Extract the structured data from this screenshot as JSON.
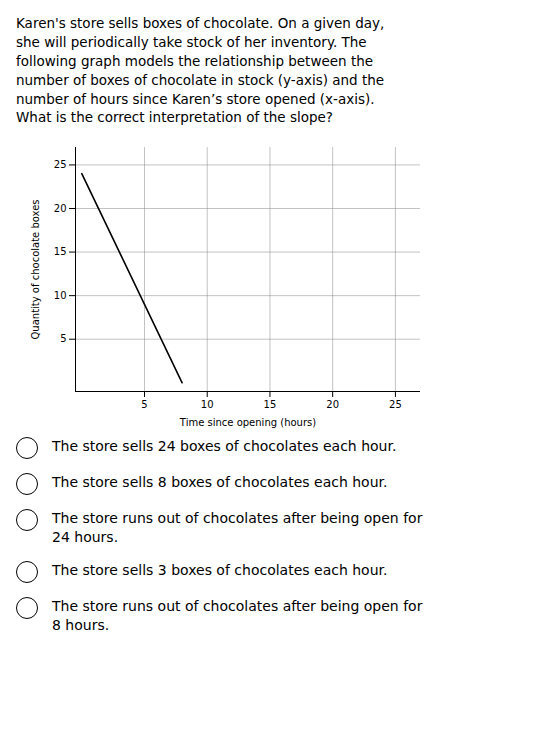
{
  "chart_data": {
    "type": "line",
    "title": "Karen's store sells boxes of chocolate. On a given day,\nshe will periodically take stock of her inventory. The\nfollowing graph models the relationship between the\nnumber of boxes of chocolate in stock (y-axis) and the\nnumber of hours since Karen’s store opened (x-axis).\nWhat is the correct interpretation of the slope?",
    "xlabel": "Time since opening (hours)",
    "ylabel": "Quantity of chocolate boxes",
    "x": [
      0,
      8
    ],
    "values": [
      24,
      0
    ],
    "color": "#000000",
    "xlim": [
      -0.5,
      27
    ],
    "ylim": [
      -1,
      27
    ],
    "xticks": [
      5,
      10,
      15,
      20,
      25
    ],
    "yticks": [
      5,
      10,
      15,
      20,
      25
    ],
    "grid": true,
    "annotations": [
      "The store sells 24 boxes of chocolates each hour.",
      "The store sells 8 boxes of chocolates each hour.",
      "The store runs out of chocolates after being open for\n24 hours.",
      "The store sells 3 boxes of chocolates each hour.",
      "The store runs out of chocolates after being open for\n8 hours."
    ]
  }
}
